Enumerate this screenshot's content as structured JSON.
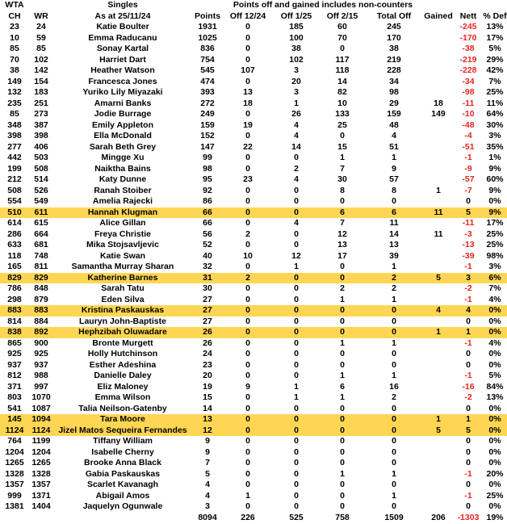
{
  "colors": {
    "highlight": "#FFD653",
    "negative": "#E8251F",
    "text": "#000000",
    "background": "#FFFFFF"
  },
  "header": {
    "group_row": {
      "wta": "WTA",
      "singles": "Singles",
      "note": "Points off and gained includes non-counters"
    },
    "columns": [
      "CH",
      "WR",
      "As at 25/11/24",
      "Points",
      "Off 12/24",
      "Off 1/25",
      "Off 2/15",
      "Total Off",
      "Gained",
      "Nett",
      "% Def"
    ]
  },
  "rows": [
    {
      "ch": "23",
      "wr": "24",
      "name": "Katie Boulter",
      "pts": "1931",
      "o12": "0",
      "o1": "185",
      "o2": "60",
      "tot": "245",
      "gd": "",
      "nett": "-245",
      "def": "13%",
      "hl": false
    },
    {
      "ch": "10",
      "wr": "59",
      "name": "Emma Raducanu",
      "pts": "1025",
      "o12": "0",
      "o1": "100",
      "o2": "70",
      "tot": "170",
      "gd": "",
      "nett": "-170",
      "def": "17%",
      "hl": false
    },
    {
      "ch": "85",
      "wr": "85",
      "name": "Sonay Kartal",
      "pts": "836",
      "o12": "0",
      "o1": "38",
      "o2": "0",
      "tot": "38",
      "gd": "",
      "nett": "-38",
      "def": "5%",
      "hl": false
    },
    {
      "ch": "70",
      "wr": "102",
      "name": "Harriet Dart",
      "pts": "754",
      "o12": "0",
      "o1": "102",
      "o2": "117",
      "tot": "219",
      "gd": "",
      "nett": "-219",
      "def": "29%",
      "hl": false
    },
    {
      "ch": "38",
      "wr": "142",
      "name": "Heather Watson",
      "pts": "545",
      "o12": "107",
      "o1": "3",
      "o2": "118",
      "tot": "228",
      "gd": "",
      "nett": "-228",
      "def": "42%",
      "hl": false
    },
    {
      "ch": "149",
      "wr": "154",
      "name": "Francesca Jones",
      "pts": "474",
      "o12": "0",
      "o1": "20",
      "o2": "14",
      "tot": "34",
      "gd": "",
      "nett": "-34",
      "def": "7%",
      "hl": false
    },
    {
      "ch": "132",
      "wr": "183",
      "name": "Yuriko Lily Miyazaki",
      "pts": "393",
      "o12": "13",
      "o1": "3",
      "o2": "82",
      "tot": "98",
      "gd": "",
      "nett": "-98",
      "def": "25%",
      "hl": false
    },
    {
      "ch": "235",
      "wr": "251",
      "name": "Amarni Banks",
      "pts": "272",
      "o12": "18",
      "o1": "1",
      "o2": "10",
      "tot": "29",
      "gd": "18",
      "nett": "-11",
      "def": "11%",
      "hl": false
    },
    {
      "ch": "85",
      "wr": "273",
      "name": "Jodie Burrage",
      "pts": "249",
      "o12": "0",
      "o1": "26",
      "o2": "133",
      "tot": "159",
      "gd": "149",
      "nett": "-10",
      "def": "64%",
      "hl": false
    },
    {
      "ch": "348",
      "wr": "387",
      "name": "Emily Appleton",
      "pts": "159",
      "o12": "19",
      "o1": "4",
      "o2": "25",
      "tot": "48",
      "gd": "",
      "nett": "-48",
      "def": "30%",
      "hl": false
    },
    {
      "ch": "398",
      "wr": "398",
      "name": "Ella McDonald",
      "pts": "152",
      "o12": "0",
      "o1": "4",
      "o2": "0",
      "tot": "4",
      "gd": "",
      "nett": "-4",
      "def": "3%",
      "hl": false
    },
    {
      "ch": "277",
      "wr": "406",
      "name": "Sarah Beth Grey",
      "pts": "147",
      "o12": "22",
      "o1": "14",
      "o2": "15",
      "tot": "51",
      "gd": "",
      "nett": "-51",
      "def": "35%",
      "hl": false
    },
    {
      "ch": "442",
      "wr": "503",
      "name": "Mingge Xu",
      "pts": "99",
      "o12": "0",
      "o1": "0",
      "o2": "1",
      "tot": "1",
      "gd": "",
      "nett": "-1",
      "def": "1%",
      "hl": false
    },
    {
      "ch": "199",
      "wr": "508",
      "name": "Naiktha Bains",
      "pts": "98",
      "o12": "0",
      "o1": "2",
      "o2": "7",
      "tot": "9",
      "gd": "",
      "nett": "-9",
      "def": "9%",
      "hl": false
    },
    {
      "ch": "212",
      "wr": "514",
      "name": "Katy Dunne",
      "pts": "95",
      "o12": "23",
      "o1": "4",
      "o2": "30",
      "tot": "57",
      "gd": "",
      "nett": "-57",
      "def": "60%",
      "hl": false
    },
    {
      "ch": "508",
      "wr": "526",
      "name": "Ranah Stoiber",
      "pts": "92",
      "o12": "0",
      "o1": "0",
      "o2": "8",
      "tot": "8",
      "gd": "1",
      "nett": "-7",
      "def": "9%",
      "hl": false
    },
    {
      "ch": "554",
      "wr": "549",
      "name": "Amelia Rajecki",
      "pts": "86",
      "o12": "0",
      "o1": "0",
      "o2": "0",
      "tot": "0",
      "gd": "",
      "nett": "0",
      "def": "0%",
      "hl": false
    },
    {
      "ch": "510",
      "wr": "611",
      "name": "Hannah Klugman",
      "pts": "66",
      "o12": "0",
      "o1": "0",
      "o2": "6",
      "tot": "6",
      "gd": "11",
      "nett": "5",
      "def": "9%",
      "hl": true
    },
    {
      "ch": "614",
      "wr": "615",
      "name": "Alice Gillan",
      "pts": "66",
      "o12": "0",
      "o1": "4",
      "o2": "7",
      "tot": "11",
      "gd": "",
      "nett": "-11",
      "def": "17%",
      "hl": false
    },
    {
      "ch": "286",
      "wr": "664",
      "name": "Freya Christie",
      "pts": "56",
      "o12": "2",
      "o1": "0",
      "o2": "12",
      "tot": "14",
      "gd": "11",
      "nett": "-3",
      "def": "25%",
      "hl": false
    },
    {
      "ch": "633",
      "wr": "681",
      "name": "Mika Stojsavljevic",
      "pts": "52",
      "o12": "0",
      "o1": "0",
      "o2": "13",
      "tot": "13",
      "gd": "",
      "nett": "-13",
      "def": "25%",
      "hl": false
    },
    {
      "ch": "118",
      "wr": "748",
      "name": "Katie Swan",
      "pts": "40",
      "o12": "10",
      "o1": "12",
      "o2": "17",
      "tot": "39",
      "gd": "",
      "nett": "-39",
      "def": "98%",
      "hl": false
    },
    {
      "ch": "165",
      "wr": "811",
      "name": "Samantha Murray Sharan",
      "pts": "32",
      "o12": "0",
      "o1": "1",
      "o2": "0",
      "tot": "1",
      "gd": "",
      "nett": "-1",
      "def": "3%",
      "hl": false
    },
    {
      "ch": "829",
      "wr": "829",
      "name": "Katherine Barnes",
      "pts": "31",
      "o12": "2",
      "o1": "0",
      "o2": "0",
      "tot": "2",
      "gd": "5",
      "nett": "3",
      "def": "6%",
      "hl": true
    },
    {
      "ch": "786",
      "wr": "848",
      "name": "Sarah Tatu",
      "pts": "30",
      "o12": "0",
      "o1": "0",
      "o2": "2",
      "tot": "2",
      "gd": "",
      "nett": "-2",
      "def": "7%",
      "hl": false
    },
    {
      "ch": "298",
      "wr": "879",
      "name": "Eden Silva",
      "pts": "27",
      "o12": "0",
      "o1": "0",
      "o2": "1",
      "tot": "1",
      "gd": "",
      "nett": "-1",
      "def": "4%",
      "hl": false
    },
    {
      "ch": "883",
      "wr": "883",
      "name": "Kristina Paskauskas",
      "pts": "27",
      "o12": "0",
      "o1": "0",
      "o2": "0",
      "tot": "0",
      "gd": "4",
      "nett": "4",
      "def": "0%",
      "hl": true
    },
    {
      "ch": "814",
      "wr": "884",
      "name": "Lauryn John-Baptiste",
      "pts": "27",
      "o12": "0",
      "o1": "0",
      "o2": "0",
      "tot": "0",
      "gd": "",
      "nett": "0",
      "def": "0%",
      "hl": false
    },
    {
      "ch": "838",
      "wr": "892",
      "name": "Hephzibah Oluwadare",
      "pts": "26",
      "o12": "0",
      "o1": "0",
      "o2": "0",
      "tot": "0",
      "gd": "1",
      "nett": "1",
      "def": "0%",
      "hl": true
    },
    {
      "ch": "865",
      "wr": "900",
      "name": "Bronte Murgett",
      "pts": "26",
      "o12": "0",
      "o1": "0",
      "o2": "1",
      "tot": "1",
      "gd": "",
      "nett": "-1",
      "def": "4%",
      "hl": false
    },
    {
      "ch": "925",
      "wr": "925",
      "name": "Holly Hutchinson",
      "pts": "24",
      "o12": "0",
      "o1": "0",
      "o2": "0",
      "tot": "0",
      "gd": "",
      "nett": "0",
      "def": "0%",
      "hl": false
    },
    {
      "ch": "937",
      "wr": "937",
      "name": "Esther Adeshina",
      "pts": "23",
      "o12": "0",
      "o1": "0",
      "o2": "0",
      "tot": "0",
      "gd": "",
      "nett": "0",
      "def": "0%",
      "hl": false
    },
    {
      "ch": "812",
      "wr": "988",
      "name": "Danielle Daley",
      "pts": "20",
      "o12": "0",
      "o1": "0",
      "o2": "1",
      "tot": "1",
      "gd": "",
      "nett": "-1",
      "def": "5%",
      "hl": false
    },
    {
      "ch": "371",
      "wr": "997",
      "name": "Eliz Maloney",
      "pts": "19",
      "o12": "9",
      "o1": "1",
      "o2": "6",
      "tot": "16",
      "gd": "",
      "nett": "-16",
      "def": "84%",
      "hl": false
    },
    {
      "ch": "803",
      "wr": "1070",
      "name": "Emma Wilson",
      "pts": "15",
      "o12": "0",
      "o1": "1",
      "o2": "1",
      "tot": "2",
      "gd": "",
      "nett": "-2",
      "def": "13%",
      "hl": false
    },
    {
      "ch": "541",
      "wr": "1087",
      "name": "Talia Neilson-Gatenby",
      "pts": "14",
      "o12": "0",
      "o1": "0",
      "o2": "0",
      "tot": "0",
      "gd": "",
      "nett": "0",
      "def": "0%",
      "hl": false
    },
    {
      "ch": "145",
      "wr": "1094",
      "name": "Tara Moore",
      "pts": "13",
      "o12": "0",
      "o1": "0",
      "o2": "0",
      "tot": "0",
      "gd": "1",
      "nett": "1",
      "def": "0%",
      "hl": true
    },
    {
      "ch": "1124",
      "wr": "1124",
      "name": "Jizel Matos Sequeira Fernandes",
      "pts": "12",
      "o12": "0",
      "o1": "0",
      "o2": "0",
      "tot": "0",
      "gd": "5",
      "nett": "5",
      "def": "0%",
      "hl": true
    },
    {
      "ch": "764",
      "wr": "1199",
      "name": "Tiffany William",
      "pts": "9",
      "o12": "0",
      "o1": "0",
      "o2": "0",
      "tot": "0",
      "gd": "",
      "nett": "0",
      "def": "0%",
      "hl": false
    },
    {
      "ch": "1204",
      "wr": "1204",
      "name": "Isabelle Cherny",
      "pts": "9",
      "o12": "0",
      "o1": "0",
      "o2": "0",
      "tot": "0",
      "gd": "",
      "nett": "0",
      "def": "0%",
      "hl": false
    },
    {
      "ch": "1265",
      "wr": "1265",
      "name": "Brooke Anna Black",
      "pts": "7",
      "o12": "0",
      "o1": "0",
      "o2": "0",
      "tot": "0",
      "gd": "",
      "nett": "0",
      "def": "0%",
      "hl": false
    },
    {
      "ch": "1328",
      "wr": "1328",
      "name": "Gabia Paskauskas",
      "pts": "5",
      "o12": "0",
      "o1": "0",
      "o2": "1",
      "tot": "1",
      "gd": "",
      "nett": "-1",
      "def": "20%",
      "hl": false
    },
    {
      "ch": "1357",
      "wr": "1357",
      "name": "Scarlet Kavanagh",
      "pts": "4",
      "o12": "0",
      "o1": "0",
      "o2": "0",
      "tot": "0",
      "gd": "",
      "nett": "0",
      "def": "0%",
      "hl": false
    },
    {
      "ch": "999",
      "wr": "1371",
      "name": "Abigail Amos",
      "pts": "4",
      "o12": "1",
      "o1": "0",
      "o2": "0",
      "tot": "1",
      "gd": "",
      "nett": "-1",
      "def": "25%",
      "hl": false
    },
    {
      "ch": "1381",
      "wr": "1404",
      "name": "Jaquelyn Ogunwale",
      "pts": "3",
      "o12": "0",
      "o1": "0",
      "o2": "0",
      "tot": "0",
      "gd": "",
      "nett": "0",
      "def": "0%",
      "hl": false
    }
  ],
  "totals": {
    "pts": "8094",
    "o12": "226",
    "o1": "525",
    "o2": "758",
    "tot": "1509",
    "gd": "206",
    "nett": "-1303",
    "def": "19%"
  }
}
